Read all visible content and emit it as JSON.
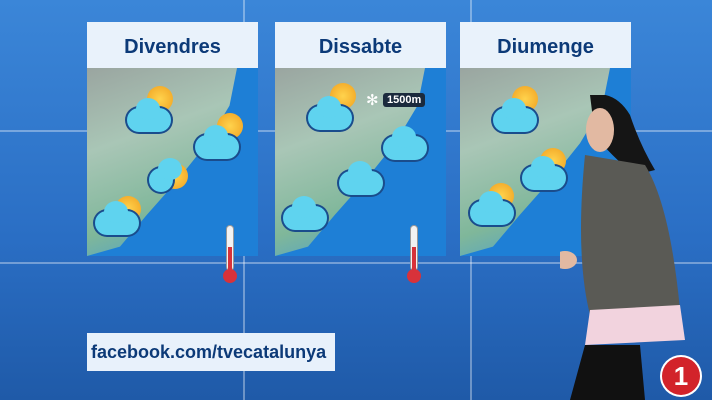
{
  "forecast": {
    "days": [
      {
        "title": "Divendres"
      },
      {
        "title": "Dissabte",
        "snow_level": "1500m"
      },
      {
        "title": "Diumenge"
      }
    ]
  },
  "banner": {
    "text": "facebook.com/tvecatalunya"
  },
  "channel_logo": {
    "text": "1",
    "color": "#d2232a"
  },
  "colors": {
    "background": "#2a6ec4",
    "title_text": "#0c3a78",
    "sea": "#1e7fd6"
  }
}
